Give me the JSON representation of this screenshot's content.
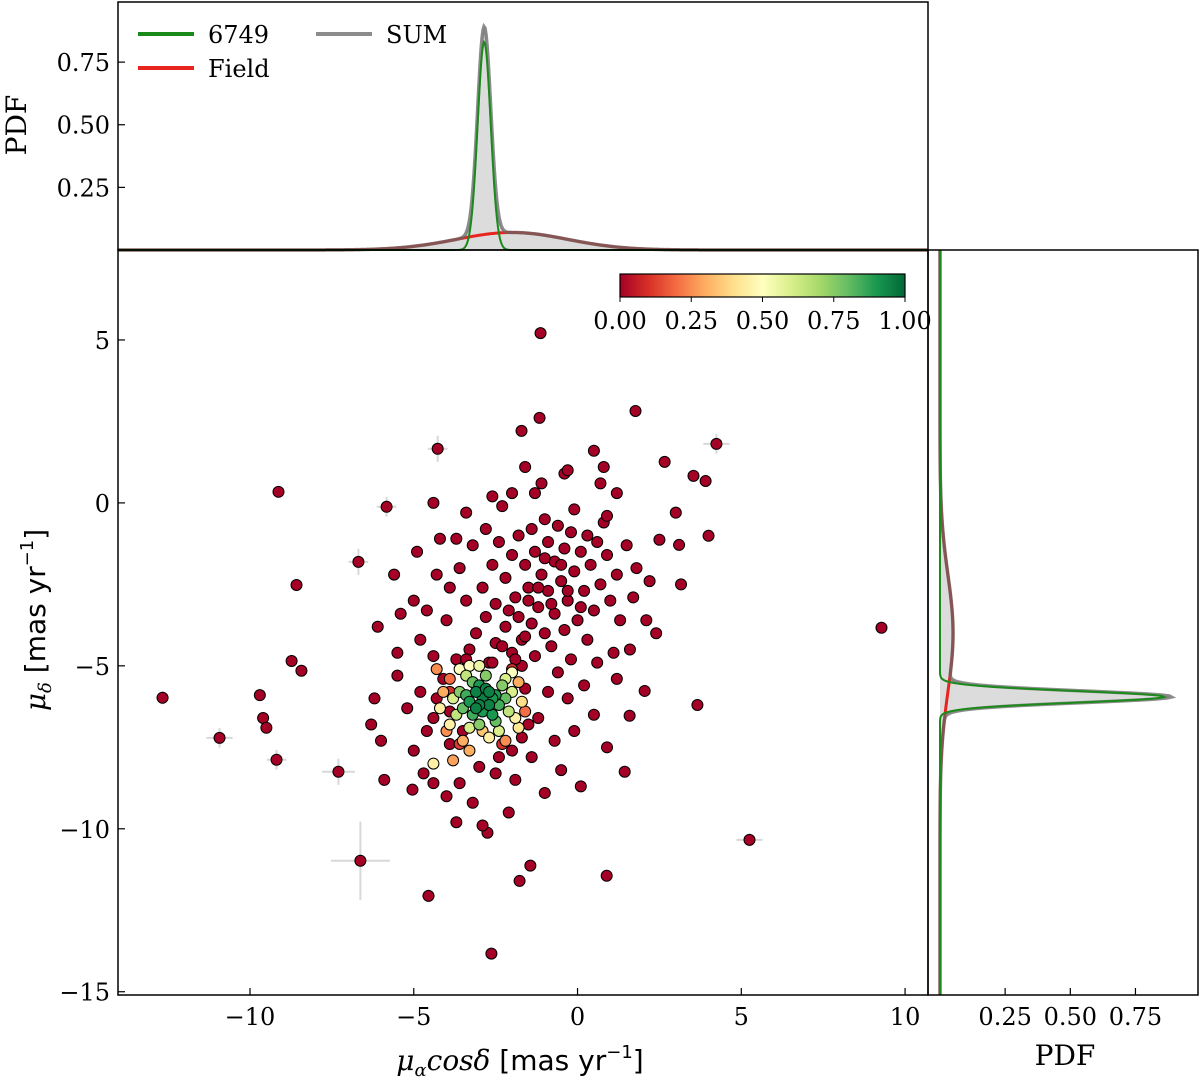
{
  "chart_data": [
    {
      "panel": "main",
      "type": "scatter",
      "xlabel": "μαcosδ [mas yr−1]",
      "ylabel": "μδ [mas yr−1]",
      "xlim": [
        -14.03,
        10.7
      ],
      "ylim": [
        -15.1,
        7.76
      ],
      "xticks": [
        "−10",
        "−5",
        "0",
        "5",
        "10"
      ],
      "xtick_values": [
        -10,
        -5,
        0,
        5,
        10
      ],
      "yticks": [
        "5",
        "0",
        "−5",
        "−10",
        "−15"
      ],
      "ytick_values": [
        5,
        0,
        -5,
        -10,
        -15
      ],
      "colormap": "RdYlGn",
      "colormap_stops": [
        "#a50026",
        "#d73027",
        "#f46d43",
        "#fdae61",
        "#fee08b",
        "#ffffbf",
        "#d9ef8b",
        "#a6d96a",
        "#66bd63",
        "#1a9850",
        "#006837"
      ],
      "colorbar": {
        "ticks": [
          "0.00",
          "0.25",
          "0.50",
          "0.75",
          "1.00"
        ],
        "range": [
          0,
          1
        ],
        "placement": "top-right"
      },
      "field_probability": 0.0,
      "field": [
        [
          -1.13,
          5.21
        ],
        [
          1.77,
          2.82
        ],
        [
          -1.16,
          2.61
        ],
        [
          -1.71,
          2.21
        ],
        [
          4.24,
          1.81
        ],
        [
          -4.27,
          1.66
        ],
        [
          2.66,
          1.26
        ],
        [
          -9.13,
          0.34
        ],
        [
          3.54,
          0.83
        ],
        [
          3.91,
          0.67
        ],
        [
          -5.83,
          -0.12
        ],
        [
          -6.69,
          -1.81
        ],
        [
          -8.58,
          -2.52
        ],
        [
          9.28,
          -3.83
        ],
        [
          -8.73,
          -4.85
        ],
        [
          -8.43,
          -5.15
        ],
        [
          -12.67,
          -5.98
        ],
        [
          -10.93,
          -7.21
        ],
        [
          -9.19,
          -7.88
        ],
        [
          -7.3,
          -8.25
        ],
        [
          -6.63,
          -10.98
        ],
        [
          5.25,
          -10.34
        ],
        [
          3.66,
          -6.2
        ],
        [
          0.89,
          -11.44
        ],
        [
          -1.44,
          -11.13
        ],
        [
          -1.77,
          -11.6
        ],
        [
          -4.55,
          -12.06
        ],
        [
          -2.63,
          -13.83
        ],
        [
          -2.75,
          -10.12
        ],
        [
          1.44,
          -8.25
        ],
        [
          4.0,
          -1.01
        ],
        [
          2.5,
          -1.13
        ],
        [
          3.1,
          -1.29
        ],
        [
          3.0,
          -0.3
        ],
        [
          3.16,
          -2.5
        ],
        [
          2.05,
          -5.77
        ],
        [
          1.59,
          -6.53
        ],
        [
          -9.7,
          -5.9
        ],
        [
          -9.6,
          -6.6
        ],
        [
          -9.5,
          -6.9
        ],
        [
          -5.04,
          -8.8
        ],
        [
          -4.4,
          -8.6
        ],
        [
          -1.0,
          -0.5
        ],
        [
          -0.6,
          -0.7
        ],
        [
          -1.4,
          -0.8
        ],
        [
          -0.2,
          -0.9
        ],
        [
          0.3,
          -1.0
        ],
        [
          -1.8,
          -1.0
        ],
        [
          -0.9,
          -1.2
        ],
        [
          0.6,
          -1.2
        ],
        [
          -2.4,
          -1.2
        ],
        [
          -0.4,
          -1.4
        ],
        [
          0.1,
          -1.5
        ],
        [
          -1.3,
          -1.5
        ],
        [
          -2.0,
          -1.6
        ],
        [
          0.9,
          -1.6
        ],
        [
          -0.7,
          -1.8
        ],
        [
          -1.6,
          -1.9
        ],
        [
          0.4,
          -1.9
        ],
        [
          -2.6,
          -1.9
        ],
        [
          -0.1,
          -2.1
        ],
        [
          -1.1,
          -2.2
        ],
        [
          1.2,
          -2.2
        ],
        [
          -2.2,
          -2.3
        ],
        [
          -0.5,
          -2.4
        ],
        [
          0.7,
          -2.5
        ],
        [
          -1.5,
          -2.6
        ],
        [
          -2.9,
          -2.6
        ],
        [
          -0.9,
          -2.7
        ],
        [
          0.2,
          -2.7
        ],
        [
          -1.9,
          -2.9
        ],
        [
          -0.3,
          -3.0
        ],
        [
          1.0,
          -3.0
        ],
        [
          -2.5,
          -3.1
        ],
        [
          -1.2,
          -3.2
        ],
        [
          0.5,
          -3.3
        ],
        [
          -0.7,
          -3.4
        ],
        [
          -1.8,
          -3.5
        ],
        [
          -2.8,
          -3.5
        ],
        [
          0.0,
          -3.6
        ],
        [
          -1.4,
          -3.7
        ],
        [
          -2.2,
          -3.8
        ],
        [
          -0.4,
          -3.9
        ],
        [
          1.3,
          -3.6
        ],
        [
          -1.0,
          -4.0
        ],
        [
          -3.1,
          -4.0
        ],
        [
          -1.7,
          -4.2
        ],
        [
          0.3,
          -4.2
        ],
        [
          -2.5,
          -4.3
        ],
        [
          -0.8,
          -4.4
        ],
        [
          -2.0,
          -4.6
        ],
        [
          -3.3,
          -4.5
        ],
        [
          -1.3,
          -4.7
        ],
        [
          -0.2,
          -4.8
        ],
        [
          -2.7,
          -4.9
        ],
        [
          -1.7,
          -5.0
        ],
        [
          -3.7,
          -4.8
        ],
        [
          -0.6,
          -5.2
        ],
        [
          -2.3,
          -4.4
        ],
        [
          -1.5,
          -3.0
        ],
        [
          -1.0,
          -1.7
        ],
        [
          -0.3,
          -2.7
        ],
        [
          0.8,
          -0.6
        ],
        [
          -0.1,
          -0.2
        ],
        [
          -1.3,
          0.3
        ],
        [
          -2.8,
          -0.8
        ],
        [
          -3.2,
          -1.3
        ],
        [
          -3.6,
          -2.0
        ],
        [
          -3.9,
          -2.6
        ],
        [
          -4.3,
          -2.2
        ],
        [
          -4.6,
          -3.3
        ],
        [
          -3.4,
          -3.0
        ],
        [
          -4.0,
          -3.6
        ],
        [
          -5.0,
          -3.0
        ],
        [
          -5.4,
          -3.4
        ],
        [
          -4.8,
          -4.2
        ],
        [
          -4.4,
          -4.7
        ],
        [
          -5.5,
          -4.6
        ],
        [
          1.5,
          -1.3
        ],
        [
          1.8,
          -2.0
        ],
        [
          2.2,
          -2.4
        ],
        [
          1.7,
          -2.9
        ],
        [
          2.1,
          -3.6
        ],
        [
          1.6,
          -4.5
        ],
        [
          2.4,
          -4.0
        ],
        [
          1.1,
          -4.6
        ],
        [
          0.6,
          -4.9
        ],
        [
          1.2,
          -5.4
        ],
        [
          0.2,
          -5.6
        ],
        [
          -0.3,
          -6.0
        ],
        [
          0.5,
          -6.5
        ],
        [
          -0.1,
          -7.0
        ],
        [
          0.9,
          -7.5
        ],
        [
          -0.9,
          -5.8
        ],
        [
          -1.2,
          -6.6
        ],
        [
          -0.7,
          -7.3
        ],
        [
          -1.4,
          -7.8
        ],
        [
          -0.5,
          -8.2
        ],
        [
          -1.9,
          -8.5
        ],
        [
          -2.5,
          -8.3
        ],
        [
          -3.0,
          -8.1
        ],
        [
          -3.6,
          -8.6
        ],
        [
          -4.0,
          -9.0
        ],
        [
          -3.2,
          -9.2
        ],
        [
          -4.7,
          -8.3
        ],
        [
          -5.0,
          -7.6
        ],
        [
          -4.6,
          -7.0
        ],
        [
          -5.2,
          -6.3
        ],
        [
          -4.8,
          -5.8
        ],
        [
          -5.5,
          -5.3
        ],
        [
          -4.4,
          -6.6
        ],
        [
          -3.9,
          -7.4
        ],
        [
          -2.4,
          -7.8
        ],
        [
          -1.7,
          -7.2
        ],
        [
          -1.0,
          -8.9
        ],
        [
          0.1,
          -8.7
        ],
        [
          -2.1,
          -9.5
        ],
        [
          -3.7,
          -9.8
        ],
        [
          -2.9,
          -9.9
        ],
        [
          -6.2,
          -6.0
        ],
        [
          -6.3,
          -6.8
        ],
        [
          -6.0,
          -7.3
        ],
        [
          -5.9,
          -8.5
        ],
        [
          -6.1,
          -3.8
        ],
        [
          -5.6,
          -2.2
        ],
        [
          -4.9,
          -1.5
        ],
        [
          -4.2,
          -1.1
        ],
        [
          -3.7,
          -1.1
        ],
        [
          -4.4,
          0.0
        ],
        [
          -3.4,
          -0.3
        ],
        [
          -2.3,
          -0.1
        ],
        [
          -2.0,
          0.3
        ],
        [
          -1.1,
          0.6
        ],
        [
          -0.4,
          0.9
        ],
        [
          0.7,
          0.6
        ],
        [
          0.5,
          1.6
        ],
        [
          -0.3,
          1.0
        ],
        [
          1.2,
          0.3
        ],
        [
          0.9,
          -0.4
        ],
        [
          -1.6,
          1.1
        ],
        [
          0.8,
          1.1
        ],
        [
          -2.6,
          0.2
        ],
        [
          -3.9,
          -6.4
        ],
        [
          -1.6,
          -5.7
        ],
        [
          -4.1,
          -5.4
        ],
        [
          -2.0,
          -7.6
        ],
        [
          -3.5,
          -7.0
        ],
        [
          -4.3,
          -6.0
        ],
        [
          -1.5,
          -6.8
        ],
        [
          -2.6,
          -4.9
        ],
        [
          -3.4,
          -4.8
        ],
        [
          -1.9,
          -4.8
        ],
        [
          -0.8,
          -3.1
        ],
        [
          -1.6,
          -4.1
        ],
        [
          -2.1,
          -3.3
        ],
        [
          -0.5,
          -1.9
        ],
        [
          -1.2,
          -2.6
        ],
        [
          0.1,
          -3.2
        ]
      ],
      "members": [
        [
          -3.9,
          -5.8,
          0.1
        ],
        [
          -2.0,
          -5.1,
          0.1
        ],
        [
          -3.6,
          -7.4,
          0.12
        ],
        [
          -2.3,
          -7.4,
          0.1
        ],
        [
          -4.1,
          -5.8,
          0.3
        ],
        [
          -3.5,
          -7.3,
          0.3
        ],
        [
          -1.8,
          -5.5,
          0.3
        ],
        [
          -4.0,
          -7.0,
          0.25
        ],
        [
          -2.2,
          -7.3,
          0.25
        ],
        [
          -3.8,
          -7.9,
          0.28
        ],
        [
          -4.3,
          -5.1,
          0.25
        ],
        [
          -1.6,
          -6.4,
          0.2
        ],
        [
          -3.3,
          -7.6,
          0.3
        ],
        [
          -2.9,
          -7.0,
          0.35
        ],
        [
          -3.9,
          -5.4,
          0.2
        ],
        [
          -3.9,
          -6.8,
          0.45
        ],
        [
          -1.9,
          -6.6,
          0.45
        ],
        [
          -3.6,
          -5.1,
          0.5
        ],
        [
          -2.0,
          -5.2,
          0.5
        ],
        [
          -2.7,
          -7.2,
          0.45
        ],
        [
          -4.2,
          -6.3,
          0.45
        ],
        [
          -1.7,
          -6.1,
          0.4
        ],
        [
          -4.4,
          -8.0,
          0.45
        ],
        [
          -3.3,
          -5.0,
          0.5
        ],
        [
          -1.8,
          -6.9,
          0.42
        ],
        [
          -3.7,
          -6.5,
          0.65
        ],
        [
          -2.1,
          -6.4,
          0.65
        ],
        [
          -3.4,
          -5.3,
          0.65
        ],
        [
          -2.2,
          -5.4,
          0.6
        ],
        [
          -3.3,
          -6.9,
          0.6
        ],
        [
          -2.4,
          -7.0,
          0.6
        ],
        [
          -3.8,
          -6.0,
          0.6
        ],
        [
          -2.0,
          -5.8,
          0.6
        ],
        [
          -3.0,
          -5.0,
          0.55
        ],
        [
          -3.6,
          -5.8,
          0.75
        ],
        [
          -2.3,
          -5.6,
          0.75
        ],
        [
          -3.0,
          -6.8,
          0.75
        ],
        [
          -2.8,
          -5.3,
          0.75
        ],
        [
          -3.5,
          -6.3,
          0.8
        ],
        [
          -2.2,
          -6.0,
          0.8
        ],
        [
          -3.2,
          -5.5,
          0.8
        ],
        [
          -2.5,
          -6.7,
          0.8
        ],
        [
          -3.4,
          -5.9,
          0.85
        ],
        [
          -2.4,
          -6.2,
          0.85
        ],
        [
          -3.2,
          -6.5,
          0.85
        ],
        [
          -3.3,
          -6.1,
          0.9
        ],
        [
          -2.5,
          -5.9,
          0.9
        ],
        [
          -2.9,
          -6.4,
          0.9
        ],
        [
          -3.0,
          -5.6,
          0.9
        ],
        [
          -2.6,
          -6.5,
          0.9
        ],
        [
          -2.6,
          -6.0,
          0.9
        ],
        [
          -2.9,
          -6.0,
          0.95
        ],
        [
          -3.1,
          -5.8,
          0.95
        ],
        [
          -2.7,
          -6.2,
          0.95
        ],
        [
          -2.8,
          -5.7,
          0.95
        ],
        [
          -3.0,
          -6.2,
          0.95
        ],
        [
          -2.7,
          -5.8,
          0.95
        ],
        [
          -3.1,
          -6.3,
          0.95
        ]
      ],
      "errors": [
        [
          -6.63,
          -10.98,
          0.9,
          1.2
        ],
        [
          -10.93,
          -7.21,
          0.4,
          0.3
        ],
        [
          -7.3,
          -8.25,
          0.5,
          0.4
        ],
        [
          4.24,
          1.81,
          0.4,
          0.3
        ],
        [
          5.25,
          -10.34,
          0.4,
          0.2
        ],
        [
          -5.83,
          -0.12,
          0.3,
          0.3
        ],
        [
          -12.67,
          -5.98,
          0.2,
          0.2
        ],
        [
          -4.27,
          1.66,
          0.3,
          0.4
        ],
        [
          -6.69,
          -1.81,
          0.3,
          0.4
        ],
        [
          -9.19,
          -7.88,
          0.3,
          0.3
        ],
        [
          -4.55,
          -12.06,
          0.2,
          0.2
        ]
      ]
    },
    {
      "panel": "top",
      "type": "line",
      "ylabel": "PDF",
      "ylim": [
        0,
        0.99
      ],
      "yticks": [
        "0.25",
        "0.50",
        "0.75"
      ],
      "ytick_values": [
        0.25,
        0.5,
        0.75
      ],
      "legend": {
        "placement": "upper-left",
        "entries": [
          {
            "name": "6749",
            "color": "#1a8a1a"
          },
          {
            "name": "Field",
            "color": "#e8241e"
          },
          {
            "name": "SUM",
            "color": "#8c8c8c"
          }
        ]
      },
      "cluster": {
        "center": -2.85,
        "sigma": 0.2,
        "peak": 0.83
      },
      "field": {
        "center": -2.0,
        "sigma": 1.7,
        "peak": 0.07
      }
    },
    {
      "panel": "right",
      "type": "line",
      "xlabel": "PDF",
      "xlim": [
        -0.046,
        0.99
      ],
      "xticks": [
        "0.25",
        "0.50",
        "0.75"
      ],
      "xtick_values": [
        0.25,
        0.5,
        0.75
      ],
      "cluster": {
        "center": -5.95,
        "sigma": 0.18,
        "peak": 0.86
      },
      "field": {
        "center": -4.0,
        "sigma": 1.8,
        "peak": 0.05
      }
    }
  ]
}
